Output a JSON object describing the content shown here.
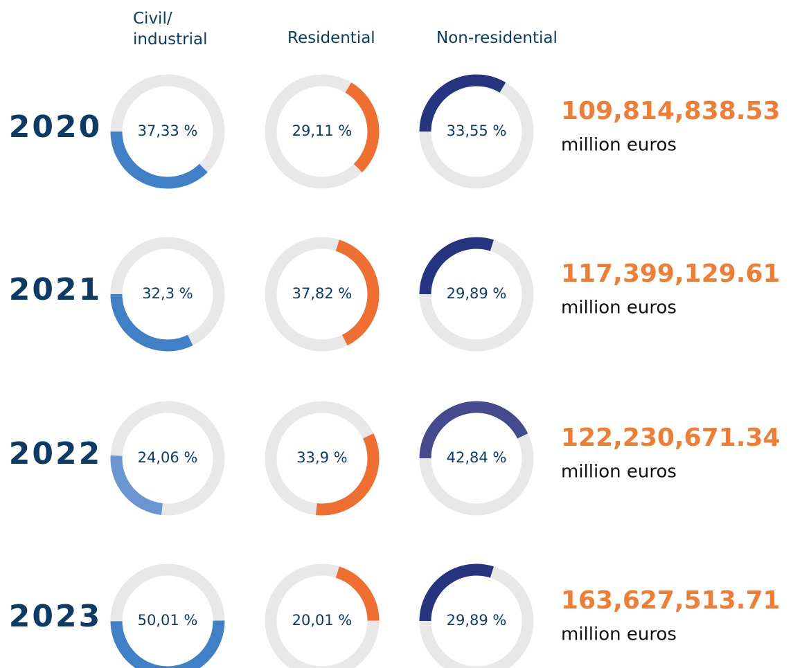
{
  "chart_data": {
    "type": "donut",
    "categories": [
      "2020",
      "2021",
      "2022",
      "2023"
    ],
    "series": [
      {
        "name": "Civil/\nindustrial",
        "colors": [
          "#3f80c6",
          "#3f80c6",
          "#6a96d2",
          "#3f80c6"
        ],
        "values": [
          37.33,
          32.3,
          24.06,
          50.01
        ],
        "value_labels": [
          "37,33 %",
          "32,3 %",
          "24,06 %",
          "50,01 %"
        ]
      },
      {
        "name": "Residential",
        "colors": [
          "#ef6f30",
          "#ef6f30",
          "#ef6f30",
          "#ef6f30"
        ],
        "values": [
          29.11,
          37.82,
          33.9,
          20.01
        ],
        "value_labels": [
          "29,11 %",
          "37,82 %",
          "33,9 %",
          "20,01 %"
        ]
      },
      {
        "name": "Non-residential",
        "colors": [
          "#263580",
          "#263580",
          "#454a8c",
          "#263580"
        ],
        "values": [
          33.55,
          29.89,
          42.84,
          29.89
        ],
        "value_labels": [
          "33,55 %",
          "29,89 %",
          "42,84 %",
          "29,89 %"
        ]
      }
    ],
    "totals": {
      "values": [
        109814838.53,
        117399129.61,
        122230671.34,
        163627513.71
      ],
      "value_labels": [
        "109,814,838.53",
        "117,399,129.61",
        "122,230,671.34",
        "163,627,513.71"
      ],
      "unit": "million euros",
      "color": "#f07d34"
    }
  }
}
